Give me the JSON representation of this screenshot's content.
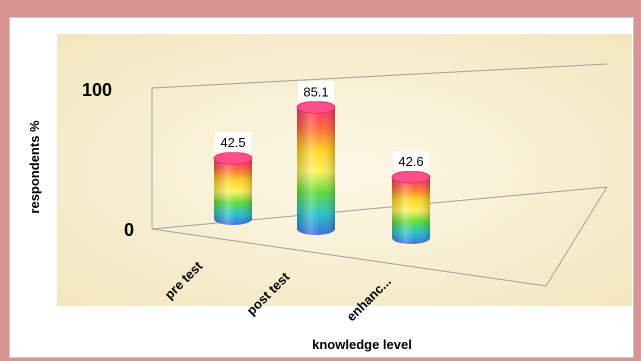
{
  "chart_data": {
    "type": "bar",
    "style": "3d-cylinder",
    "categories": [
      "pre test",
      "post test",
      "enhanc..."
    ],
    "values": [
      42.5,
      85.1,
      42.6
    ],
    "data_labels": [
      "42.5",
      "85.1",
      "42.6"
    ],
    "xlabel": "knowledge level",
    "ylabel": "respondents %",
    "ylim": [
      0,
      100
    ],
    "y_ticks": [
      "0",
      "100"
    ],
    "grid": false,
    "legend": "none",
    "colors": {
      "frame": "#d99594",
      "plot_background": "#f7efd2",
      "rainbow": [
        "#ff2d6b",
        "#ff6a3a",
        "#ffd21f",
        "#fff25a",
        "#5fdc3c",
        "#27c3c9",
        "#3b6fe0"
      ]
    }
  }
}
